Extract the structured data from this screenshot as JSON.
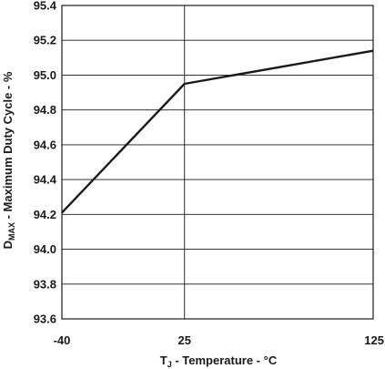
{
  "chart_data": {
    "type": "line",
    "xlabel": "T",
    "xlabel_sub": "J",
    "xlabel_rest": " - Temperature - °C",
    "ylabel": "D",
    "ylabel_sub": "MAX",
    "ylabel_rest": " - Maximum Duty Cycle - %",
    "xlim": [
      -40,
      125
    ],
    "ylim": [
      93.6,
      95.4
    ],
    "x_ticks": [
      -40,
      25,
      125
    ],
    "y_ticks": [
      93.6,
      93.8,
      94.0,
      94.2,
      94.4,
      94.6,
      94.8,
      95.0,
      95.2,
      95.4
    ],
    "x_tick_labels": [
      "-40",
      "25",
      "125"
    ],
    "y_tick_labels": [
      "93.6",
      "93.8",
      "94.0",
      "94.2",
      "94.4",
      "94.6",
      "94.8",
      "95.0",
      "95.2",
      "95.4"
    ],
    "grid": true,
    "series": [
      {
        "x": [
          -40,
          25,
          125
        ],
        "y": [
          94.21,
          94.95,
          95.14
        ]
      }
    ],
    "colors": {
      "line": "#1a1a1a",
      "grid": "#1a1a1a",
      "frame": "#1a1a1a"
    }
  }
}
